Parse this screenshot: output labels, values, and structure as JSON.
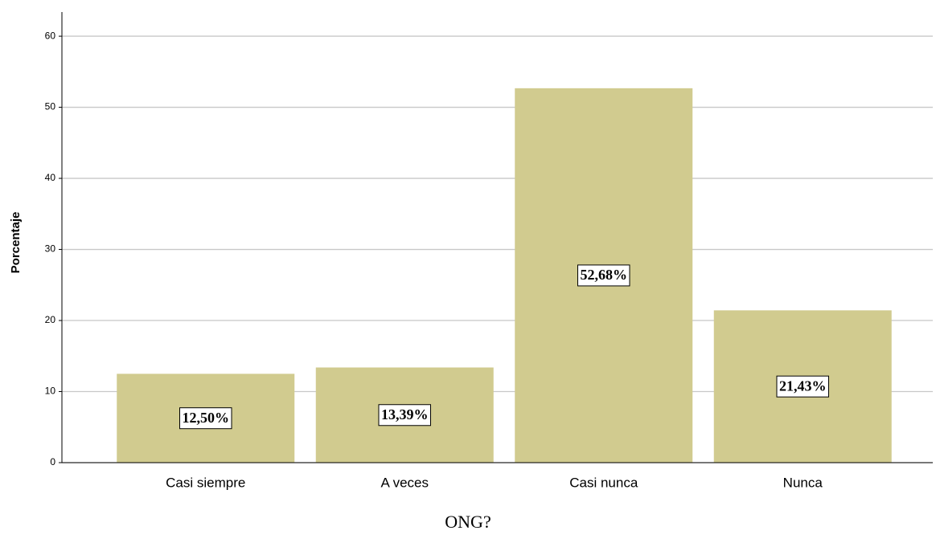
{
  "chart_data": {
    "type": "bar",
    "x_label": "ONG?",
    "y_label": "Porcentaje",
    "categories": [
      "Casi siempre",
      "A veces",
      "Casi nunca",
      "Nunca"
    ],
    "values": [
      12.5,
      13.39,
      52.68,
      21.43
    ],
    "value_labels": [
      "12,50%",
      "13,39%",
      "52,68%",
      "21,43%"
    ],
    "color": "#d1cb8f",
    "ylim": [
      0,
      63.4
    ],
    "yticks": [
      0,
      10,
      20,
      30,
      40,
      50,
      60
    ],
    "grid": true
  }
}
